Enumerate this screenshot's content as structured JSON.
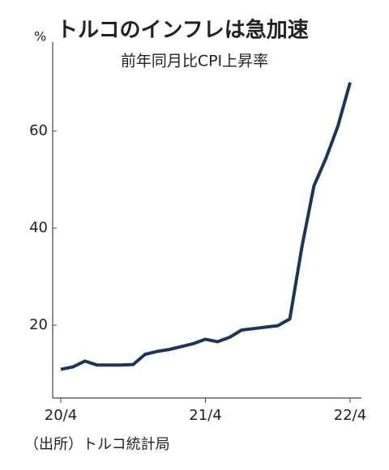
{
  "chart_data": {
    "type": "line",
    "title": "トルコのインフレは急加速",
    "subtitle": "前年同月比CPI上昇率",
    "y_unit": "%",
    "source": "（出所）トルコ統計局",
    "categories": [
      "20/4",
      null,
      null,
      null,
      null,
      null,
      null,
      null,
      null,
      null,
      null,
      null,
      "21/4",
      null,
      null,
      null,
      null,
      null,
      null,
      null,
      null,
      null,
      null,
      null,
      "22/4"
    ],
    "series": [
      {
        "name": "前年同月比CPI上昇率",
        "color": "#1d3557",
        "values": [
          10.9,
          11.4,
          12.6,
          11.8,
          11.8,
          11.8,
          11.9,
          14.0,
          14.6,
          15.0,
          15.6,
          16.2,
          17.1,
          16.6,
          17.5,
          19.0,
          19.3,
          19.6,
          19.9,
          21.3,
          36.1,
          48.7,
          54.4,
          61.1,
          70.0
        ]
      }
    ],
    "ylim": [
      5,
      77
    ],
    "yticks": [
      20,
      40,
      60
    ],
    "grid": false
  }
}
